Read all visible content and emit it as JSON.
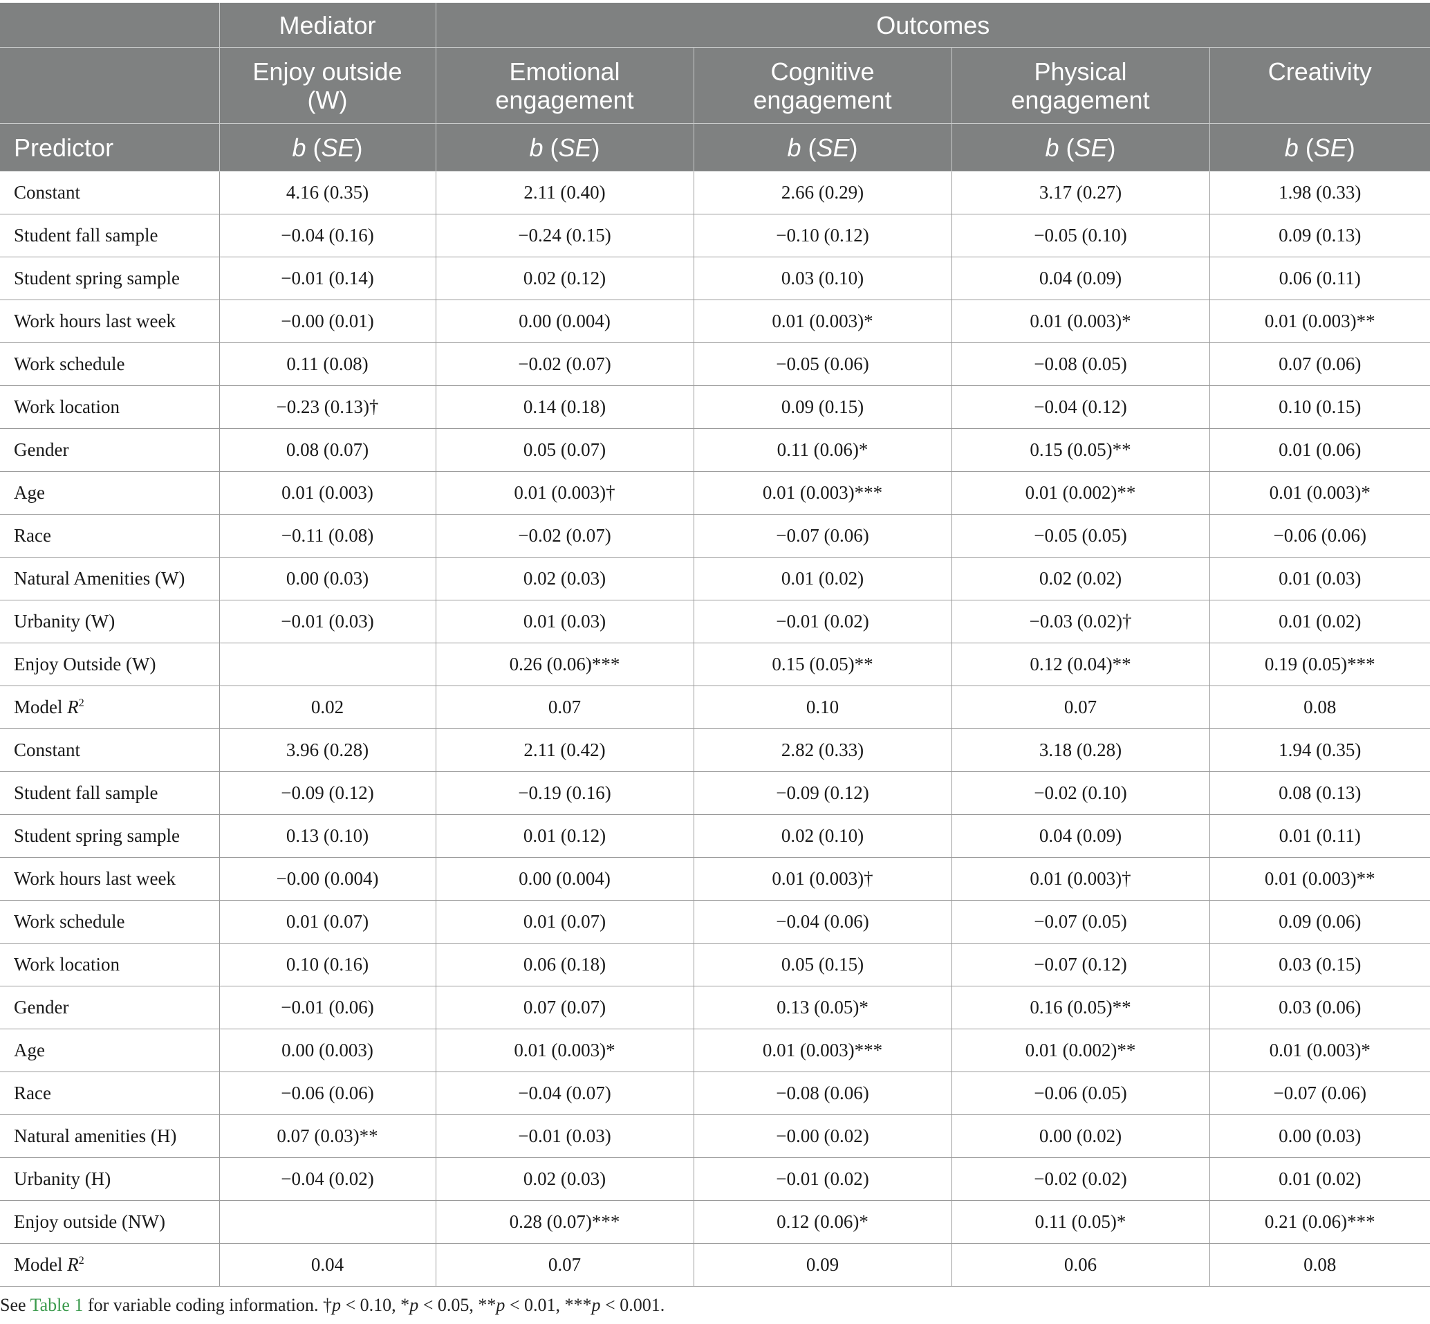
{
  "header": {
    "group_mediator": "Mediator",
    "group_outcomes": "Outcomes",
    "columns": [
      {
        "line1": "Enjoy outside",
        "line2": "(W)"
      },
      {
        "line1": "Emotional",
        "line2": "engagement"
      },
      {
        "line1": "Cognitive",
        "line2": "engagement"
      },
      {
        "line1": "Physical",
        "line2": "engagement"
      },
      {
        "line1": "Creativity",
        "line2": ""
      }
    ],
    "predictor_label": "Predictor",
    "stat_b": "b",
    "stat_open": " (",
    "stat_se": "SE",
    "stat_close": ")"
  },
  "rows": [
    {
      "label": "Constant",
      "cells": [
        "4.16 (0.35)",
        "2.11 (0.40)",
        "2.66 (0.29)",
        "3.17 (0.27)",
        "1.98 (0.33)"
      ]
    },
    {
      "label": "Student fall sample",
      "cells": [
        "−0.04 (0.16)",
        "−0.24 (0.15)",
        "−0.10 (0.12)",
        "−0.05 (0.10)",
        "0.09 (0.13)"
      ]
    },
    {
      "label": "Student spring sample",
      "cells": [
        "−0.01 (0.14)",
        "0.02 (0.12)",
        "0.03 (0.10)",
        "0.04 (0.09)",
        "0.06 (0.11)"
      ]
    },
    {
      "label": "Work hours last week",
      "cells": [
        "−0.00 (0.01)",
        "0.00 (0.004)",
        "0.01 (0.003)*",
        "0.01 (0.003)*",
        "0.01 (0.003)**"
      ]
    },
    {
      "label": "Work schedule",
      "cells": [
        "0.11 (0.08)",
        "−0.02 (0.07)",
        "−0.05 (0.06)",
        "−0.08 (0.05)",
        "0.07 (0.06)"
      ]
    },
    {
      "label": "Work location",
      "cells": [
        "−0.23 (0.13)†",
        "0.14 (0.18)",
        "0.09 (0.15)",
        "−0.04 (0.12)",
        "0.10 (0.15)"
      ]
    },
    {
      "label": "Gender",
      "cells": [
        "0.08 (0.07)",
        "0.05 (0.07)",
        "0.11 (0.06)*",
        "0.15 (0.05)**",
        "0.01 (0.06)"
      ]
    },
    {
      "label": "Age",
      "cells": [
        "0.01 (0.003)",
        "0.01 (0.003)†",
        "0.01 (0.003)***",
        "0.01 (0.002)**",
        "0.01 (0.003)*"
      ]
    },
    {
      "label": "Race",
      "cells": [
        "−0.11 (0.08)",
        "−0.02 (0.07)",
        "−0.07 (0.06)",
        "−0.05 (0.05)",
        "−0.06 (0.06)"
      ]
    },
    {
      "label": "Natural Amenities (W)",
      "cells": [
        "0.00 (0.03)",
        "0.02 (0.03)",
        "0.01 (0.02)",
        "0.02 (0.02)",
        "0.01 (0.03)"
      ]
    },
    {
      "label": "Urbanity (W)",
      "cells": [
        "−0.01 (0.03)",
        "0.01 (0.03)",
        "−0.01 (0.02)",
        "−0.03 (0.02)†",
        "0.01 (0.02)"
      ]
    },
    {
      "label": "Enjoy Outside (W)",
      "cells": [
        "",
        "0.26 (0.06)***",
        "0.15 (0.05)**",
        "0.12 (0.04)**",
        "0.19 (0.05)***"
      ]
    },
    {
      "label": "Model ",
      "label_italic": "R",
      "label_sup": "2",
      "cells": [
        "0.02",
        "0.07",
        "0.10",
        "0.07",
        "0.08"
      ]
    },
    {
      "label": "Constant",
      "cells": [
        "3.96 (0.28)",
        "2.11 (0.42)",
        "2.82 (0.33)",
        "3.18 (0.28)",
        "1.94 (0.35)"
      ]
    },
    {
      "label": "Student fall sample",
      "cells": [
        "−0.09 (0.12)",
        "−0.19 (0.16)",
        "−0.09 (0.12)",
        "−0.02 (0.10)",
        "0.08 (0.13)"
      ]
    },
    {
      "label": "Student spring sample",
      "cells": [
        "0.13 (0.10)",
        "0.01 (0.12)",
        "0.02 (0.10)",
        "0.04 (0.09)",
        "0.01 (0.11)"
      ]
    },
    {
      "label": "Work hours last week",
      "cells": [
        "−0.00 (0.004)",
        "0.00 (0.004)",
        "0.01 (0.003)†",
        "0.01 (0.003)†",
        "0.01 (0.003)**"
      ]
    },
    {
      "label": "Work schedule",
      "cells": [
        "0.01 (0.07)",
        "0.01 (0.07)",
        "−0.04 (0.06)",
        "−0.07 (0.05)",
        "0.09 (0.06)"
      ]
    },
    {
      "label": "Work location",
      "cells": [
        "0.10 (0.16)",
        "0.06 (0.18)",
        "0.05 (0.15)",
        "−0.07 (0.12)",
        "0.03 (0.15)"
      ]
    },
    {
      "label": "Gender",
      "cells": [
        "−0.01 (0.06)",
        "0.07 (0.07)",
        "0.13 (0.05)*",
        "0.16 (0.05)**",
        "0.03 (0.06)"
      ]
    },
    {
      "label": "Age",
      "cells": [
        "0.00 (0.003)",
        "0.01 (0.003)*",
        "0.01 (0.003)***",
        "0.01 (0.002)**",
        "0.01 (0.003)*"
      ]
    },
    {
      "label": "Race",
      "cells": [
        "−0.06 (0.06)",
        "−0.04 (0.07)",
        "−0.08 (0.06)",
        "−0.06 (0.05)",
        "−0.07 (0.06)"
      ]
    },
    {
      "label": "Natural amenities (H)",
      "cells": [
        "0.07 (0.03)**",
        "−0.01 (0.03)",
        "−0.00 (0.02)",
        "0.00 (0.02)",
        "0.00 (0.03)"
      ]
    },
    {
      "label": "Urbanity (H)",
      "cells": [
        "−0.04 (0.02)",
        "0.02 (0.03)",
        "−0.01 (0.02)",
        "−0.02 (0.02)",
        "0.01 (0.02)"
      ]
    },
    {
      "label": "Enjoy outside (NW)",
      "cells": [
        "",
        "0.28 (0.07)***",
        "0.12 (0.06)*",
        "0.11 (0.05)*",
        "0.21 (0.06)***"
      ]
    },
    {
      "label": "Model ",
      "label_italic": "R",
      "label_sup": "2",
      "cells": [
        "0.04",
        "0.07",
        "0.09",
        "0.06",
        "0.08"
      ]
    }
  ],
  "footnote": {
    "before": "See ",
    "link_text": "Table 1",
    "after": " for variable coding information. †",
    "p": "p",
    "t1": " < 0.10, *",
    "t2": " < 0.05, **",
    "t3": " < 0.01, ***",
    "t4": " < 0.001."
  }
}
